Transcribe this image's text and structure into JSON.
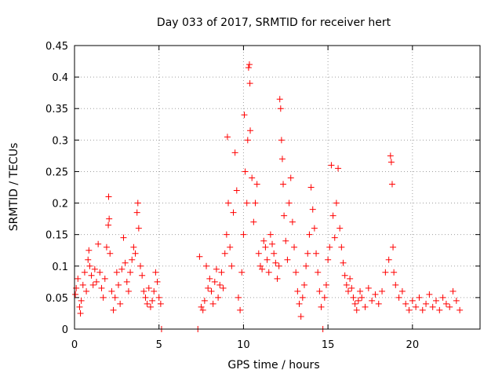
{
  "chart_data": {
    "type": "scatter",
    "title": "Day 033 of 2017, SRMTID for receiver hert",
    "xlabel": "GPS time / hours",
    "ylabel": "SRMTID / TECUs",
    "xlim": [
      0,
      24
    ],
    "ylim": [
      0,
      0.45
    ],
    "xticks": [
      0,
      5,
      10,
      15,
      20
    ],
    "xtick_labels": [
      "0",
      "5",
      "10",
      "15",
      "20"
    ],
    "yticks": [
      0,
      0.05,
      0.1,
      0.15,
      0.2,
      0.25,
      0.3,
      0.35,
      0.4,
      0.45
    ],
    "ytick_labels": [
      "0",
      "0.05",
      "0.1",
      "0.15",
      "0.2",
      "0.25",
      "0.3",
      "0.35",
      "0.4",
      "0.45"
    ],
    "grid": true,
    "marker": "+",
    "color": "#ff0000",
    "series": [
      {
        "name": "SRMTID",
        "points": [
          [
            0.05,
            0.055
          ],
          [
            0.1,
            0.065
          ],
          [
            0.2,
            0.08
          ],
          [
            0.3,
            0.035
          ],
          [
            0.35,
            0.025
          ],
          [
            0.4,
            0.045
          ],
          [
            0.5,
            0.07
          ],
          [
            0.6,
            0.09
          ],
          [
            0.7,
            0.06
          ],
          [
            0.8,
            0.11
          ],
          [
            0.85,
            0.125
          ],
          [
            0.9,
            0.1
          ],
          [
            1.0,
            0.085
          ],
          [
            1.1,
            0.07
          ],
          [
            1.2,
            0.095
          ],
          [
            1.3,
            0.075
          ],
          [
            1.4,
            0.135
          ],
          [
            1.5,
            0.09
          ],
          [
            1.6,
            0.065
          ],
          [
            1.7,
            0.05
          ],
          [
            1.8,
            0.08
          ],
          [
            1.9,
            0.13
          ],
          [
            2.0,
            0.165
          ],
          [
            2.02,
            0.21
          ],
          [
            2.05,
            0.175
          ],
          [
            2.1,
            0.12
          ],
          [
            2.2,
            0.06
          ],
          [
            2.3,
            0.03
          ],
          [
            2.4,
            0.05
          ],
          [
            2.5,
            0.09
          ],
          [
            2.6,
            0.07
          ],
          [
            2.7,
            0.04
          ],
          [
            2.8,
            0.095
          ],
          [
            2.9,
            0.145
          ],
          [
            3.0,
            0.105
          ],
          [
            3.1,
            0.075
          ],
          [
            3.2,
            0.06
          ],
          [
            3.3,
            0.09
          ],
          [
            3.4,
            0.11
          ],
          [
            3.5,
            0.13
          ],
          [
            3.6,
            0.12
          ],
          [
            3.7,
            0.185
          ],
          [
            3.75,
            0.2
          ],
          [
            3.8,
            0.16
          ],
          [
            3.9,
            0.1
          ],
          [
            4.0,
            0.085
          ],
          [
            4.1,
            0.06
          ],
          [
            4.2,
            0.05
          ],
          [
            4.3,
            0.04
          ],
          [
            4.4,
            0.065
          ],
          [
            4.5,
            0.035
          ],
          [
            4.6,
            0.045
          ],
          [
            4.7,
            0.06
          ],
          [
            4.8,
            0.09
          ],
          [
            4.9,
            0.075
          ],
          [
            5.0,
            0.05
          ],
          [
            5.1,
            0.04
          ],
          [
            5.15,
            0.0
          ],
          [
            7.3,
            0.0
          ],
          [
            7.4,
            0.115
          ],
          [
            7.5,
            0.035
          ],
          [
            7.6,
            0.03
          ],
          [
            7.7,
            0.045
          ],
          [
            7.8,
            0.1
          ],
          [
            7.9,
            0.065
          ],
          [
            8.0,
            0.08
          ],
          [
            8.1,
            0.06
          ],
          [
            8.2,
            0.04
          ],
          [
            8.3,
            0.075
          ],
          [
            8.4,
            0.095
          ],
          [
            8.5,
            0.05
          ],
          [
            8.6,
            0.07
          ],
          [
            8.7,
            0.09
          ],
          [
            8.8,
            0.065
          ],
          [
            8.9,
            0.12
          ],
          [
            9.0,
            0.15
          ],
          [
            9.05,
            0.305
          ],
          [
            9.1,
            0.2
          ],
          [
            9.2,
            0.13
          ],
          [
            9.3,
            0.1
          ],
          [
            9.4,
            0.185
          ],
          [
            9.5,
            0.28
          ],
          [
            9.6,
            0.22
          ],
          [
            9.7,
            0.05
          ],
          [
            9.8,
            0.03
          ],
          [
            9.9,
            0.09
          ],
          [
            10.0,
            0.15
          ],
          [
            10.05,
            0.34
          ],
          [
            10.1,
            0.25
          ],
          [
            10.2,
            0.2
          ],
          [
            10.25,
            0.3
          ],
          [
            10.3,
            0.415
          ],
          [
            10.35,
            0.42
          ],
          [
            10.38,
            0.39
          ],
          [
            10.4,
            0.315
          ],
          [
            10.5,
            0.24
          ],
          [
            10.6,
            0.17
          ],
          [
            10.7,
            0.2
          ],
          [
            10.8,
            0.23
          ],
          [
            10.9,
            0.12
          ],
          [
            11.0,
            0.1
          ],
          [
            11.1,
            0.095
          ],
          [
            11.2,
            0.14
          ],
          [
            11.3,
            0.13
          ],
          [
            11.4,
            0.11
          ],
          [
            11.5,
            0.09
          ],
          [
            11.6,
            0.15
          ],
          [
            11.7,
            0.135
          ],
          [
            11.8,
            0.12
          ],
          [
            11.9,
            0.105
          ],
          [
            12.0,
            0.08
          ],
          [
            12.1,
            0.1
          ],
          [
            12.15,
            0.365
          ],
          [
            12.2,
            0.35
          ],
          [
            12.25,
            0.3
          ],
          [
            12.3,
            0.27
          ],
          [
            12.35,
            0.23
          ],
          [
            12.4,
            0.18
          ],
          [
            12.5,
            0.14
          ],
          [
            12.6,
            0.11
          ],
          [
            12.7,
            0.2
          ],
          [
            12.8,
            0.24
          ],
          [
            12.9,
            0.17
          ],
          [
            13.0,
            0.13
          ],
          [
            13.1,
            0.09
          ],
          [
            13.2,
            0.06
          ],
          [
            13.3,
            0.04
          ],
          [
            13.4,
            0.02
          ],
          [
            13.5,
            0.05
          ],
          [
            13.6,
            0.07
          ],
          [
            13.7,
            0.1
          ],
          [
            13.8,
            0.12
          ],
          [
            13.9,
            0.15
          ],
          [
            14.0,
            0.225
          ],
          [
            14.1,
            0.19
          ],
          [
            14.2,
            0.16
          ],
          [
            14.3,
            0.12
          ],
          [
            14.4,
            0.09
          ],
          [
            14.5,
            0.06
          ],
          [
            14.6,
            0.035
          ],
          [
            14.7,
            0.0
          ],
          [
            14.8,
            0.05
          ],
          [
            14.9,
            0.07
          ],
          [
            15.0,
            0.11
          ],
          [
            15.1,
            0.13
          ],
          [
            15.2,
            0.26
          ],
          [
            15.3,
            0.18
          ],
          [
            15.4,
            0.145
          ],
          [
            15.5,
            0.2
          ],
          [
            15.6,
            0.255
          ],
          [
            15.7,
            0.16
          ],
          [
            15.8,
            0.13
          ],
          [
            15.9,
            0.105
          ],
          [
            16.0,
            0.085
          ],
          [
            16.1,
            0.07
          ],
          [
            16.2,
            0.06
          ],
          [
            16.3,
            0.08
          ],
          [
            16.4,
            0.065
          ],
          [
            16.5,
            0.05
          ],
          [
            16.6,
            0.04
          ],
          [
            16.7,
            0.03
          ],
          [
            16.8,
            0.045
          ],
          [
            16.9,
            0.06
          ],
          [
            17.0,
            0.05
          ],
          [
            17.2,
            0.035
          ],
          [
            17.4,
            0.065
          ],
          [
            17.6,
            0.045
          ],
          [
            17.8,
            0.055
          ],
          [
            18.0,
            0.04
          ],
          [
            18.2,
            0.06
          ],
          [
            18.4,
            0.09
          ],
          [
            18.6,
            0.11
          ],
          [
            18.7,
            0.275
          ],
          [
            18.75,
            0.265
          ],
          [
            18.8,
            0.23
          ],
          [
            18.85,
            0.13
          ],
          [
            18.9,
            0.09
          ],
          [
            19.0,
            0.07
          ],
          [
            19.2,
            0.05
          ],
          [
            19.4,
            0.06
          ],
          [
            19.6,
            0.04
          ],
          [
            19.8,
            0.03
          ],
          [
            20.0,
            0.045
          ],
          [
            20.2,
            0.035
          ],
          [
            20.4,
            0.05
          ],
          [
            20.6,
            0.03
          ],
          [
            20.8,
            0.04
          ],
          [
            21.0,
            0.055
          ],
          [
            21.2,
            0.035
          ],
          [
            21.4,
            0.045
          ],
          [
            21.6,
            0.03
          ],
          [
            21.8,
            0.05
          ],
          [
            22.0,
            0.04
          ],
          [
            22.2,
            0.035
          ],
          [
            22.4,
            0.06
          ],
          [
            22.6,
            0.045
          ],
          [
            22.8,
            0.03
          ]
        ]
      }
    ]
  }
}
